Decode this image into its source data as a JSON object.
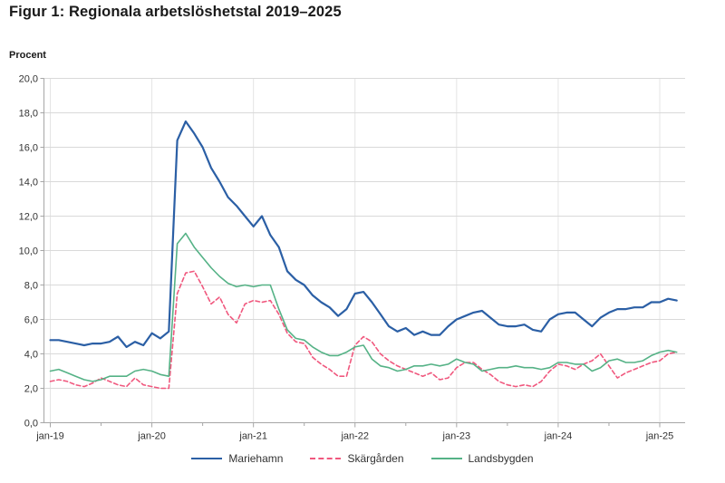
{
  "chart_data": {
    "type": "line",
    "title": "Figur 1: Regionala arbetslöshetstal 2019–2025",
    "ylabel": "Procent",
    "xlabel": "",
    "ylim": [
      0,
      20
    ],
    "y_tick_step": 2,
    "grid": true,
    "legend_position": "bottom",
    "x_start": "jan-19",
    "x_end": "mar-25",
    "x_tick_labels": [
      "jan-19",
      "jan-20",
      "jan-21",
      "jan-22",
      "jan-23",
      "jan-24",
      "jan-25"
    ],
    "y_tick_labels": [
      "0,0",
      "2,0",
      "4,0",
      "6,0",
      "8,0",
      "10,0",
      "12,0",
      "14,0",
      "16,0",
      "18,0",
      "20,0"
    ],
    "series": [
      {
        "name": "Mariehamn",
        "color": "#2b5fa5",
        "style": "solid",
        "values": [
          4.8,
          4.8,
          4.7,
          4.6,
          4.5,
          4.6,
          4.6,
          4.7,
          5.0,
          4.4,
          4.7,
          4.5,
          5.2,
          4.9,
          5.3,
          16.4,
          17.5,
          16.8,
          16.0,
          14.8,
          14.0,
          13.1,
          12.6,
          12.0,
          11.4,
          12.0,
          10.9,
          10.2,
          8.8,
          8.3,
          8.0,
          7.4,
          7.0,
          6.7,
          6.2,
          6.6,
          7.5,
          7.6,
          7.0,
          6.3,
          5.6,
          5.3,
          5.5,
          5.1,
          5.3,
          5.1,
          5.1,
          5.6,
          6.0,
          6.2,
          6.4,
          6.5,
          6.1,
          5.7,
          5.6,
          5.6,
          5.7,
          5.4,
          5.3,
          6.0,
          6.3,
          6.4,
          6.4,
          6.0,
          5.6,
          6.1,
          6.4,
          6.6,
          6.6,
          6.7,
          6.7,
          7.0,
          7.0,
          7.2,
          7.1
        ]
      },
      {
        "name": "Skärgården",
        "color": "#f0587e",
        "style": "dashed",
        "values": [
          2.4,
          2.5,
          2.4,
          2.2,
          2.1,
          2.3,
          2.6,
          2.4,
          2.2,
          2.1,
          2.6,
          2.2,
          2.1,
          2.0,
          2.0,
          7.5,
          8.7,
          8.8,
          7.9,
          6.9,
          7.3,
          6.3,
          5.8,
          6.9,
          7.1,
          7.0,
          7.1,
          6.3,
          5.2,
          4.7,
          4.6,
          3.8,
          3.4,
          3.1,
          2.7,
          2.7,
          4.5,
          5.0,
          4.7,
          4.0,
          3.6,
          3.3,
          3.1,
          2.9,
          2.7,
          2.9,
          2.5,
          2.6,
          3.2,
          3.5,
          3.5,
          3.1,
          2.8,
          2.4,
          2.2,
          2.1,
          2.2,
          2.1,
          2.4,
          3.0,
          3.4,
          3.3,
          3.1,
          3.4,
          3.6,
          4.0,
          3.3,
          2.6,
          2.9,
          3.1,
          3.3,
          3.5,
          3.6,
          4.0,
          4.1
        ]
      },
      {
        "name": "Landsbygden",
        "color": "#55b286",
        "style": "solid",
        "values": [
          3.0,
          3.1,
          2.9,
          2.7,
          2.5,
          2.4,
          2.5,
          2.7,
          2.7,
          2.7,
          3.0,
          3.1,
          3.0,
          2.8,
          2.7,
          10.4,
          11.0,
          10.2,
          9.6,
          9.0,
          8.5,
          8.1,
          7.9,
          8.0,
          7.9,
          8.0,
          8.0,
          6.6,
          5.4,
          4.9,
          4.8,
          4.4,
          4.1,
          3.9,
          3.9,
          4.1,
          4.4,
          4.5,
          3.7,
          3.3,
          3.2,
          3.0,
          3.1,
          3.3,
          3.3,
          3.4,
          3.3,
          3.4,
          3.7,
          3.5,
          3.4,
          3.0,
          3.1,
          3.2,
          3.2,
          3.3,
          3.2,
          3.2,
          3.1,
          3.2,
          3.5,
          3.5,
          3.4,
          3.4,
          3.0,
          3.2,
          3.6,
          3.7,
          3.5,
          3.5,
          3.6,
          3.9,
          4.1,
          4.2,
          4.1
        ]
      }
    ],
    "colors": {
      "grid": "#d9d9d9",
      "axis": "#a6a6a6",
      "text": "#333333",
      "title_text": "#1a1a1a"
    }
  }
}
